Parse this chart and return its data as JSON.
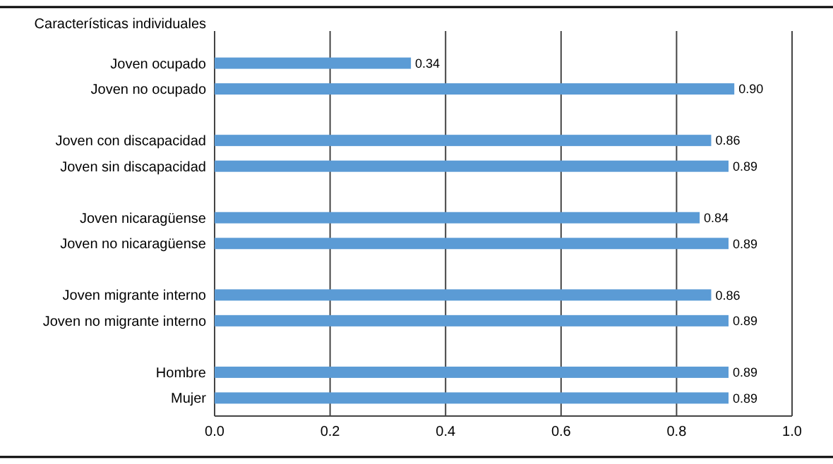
{
  "chart_data": {
    "type": "bar",
    "orientation": "horizontal",
    "ylabel": "Características individuales",
    "categories": [
      "Joven ocupado",
      "Joven no ocupado",
      null,
      "Joven con discapacidad",
      "Joven sin discapacidad",
      null,
      "Joven nicaragüense",
      "Joven no nicaragüense",
      null,
      "Joven migrante interno",
      "Joven no migrante interno",
      null,
      "Hombre",
      "Mujer"
    ],
    "values": [
      0.34,
      0.9,
      null,
      0.86,
      0.89,
      null,
      0.84,
      0.89,
      null,
      0.86,
      0.89,
      null,
      0.89,
      0.89
    ],
    "value_labels": [
      "0.34",
      "0.90",
      null,
      "0.86",
      "0.89",
      null,
      "0.84",
      "0.89",
      null,
      "0.86",
      "0.89",
      null,
      "0.89",
      "0.89"
    ],
    "color": "#5b9bd5",
    "xlim": [
      0,
      1
    ],
    "xticks": [
      {
        "value": 0,
        "label": "0.0"
      },
      {
        "value": 0.2,
        "label": "0.2"
      },
      {
        "value": 0.4,
        "label": "0.4"
      },
      {
        "value": 0.6,
        "label": "0.6"
      },
      {
        "value": 0.8,
        "label": "0.8"
      },
      {
        "value": 1,
        "label": "1.0"
      }
    ],
    "grid": "x"
  }
}
